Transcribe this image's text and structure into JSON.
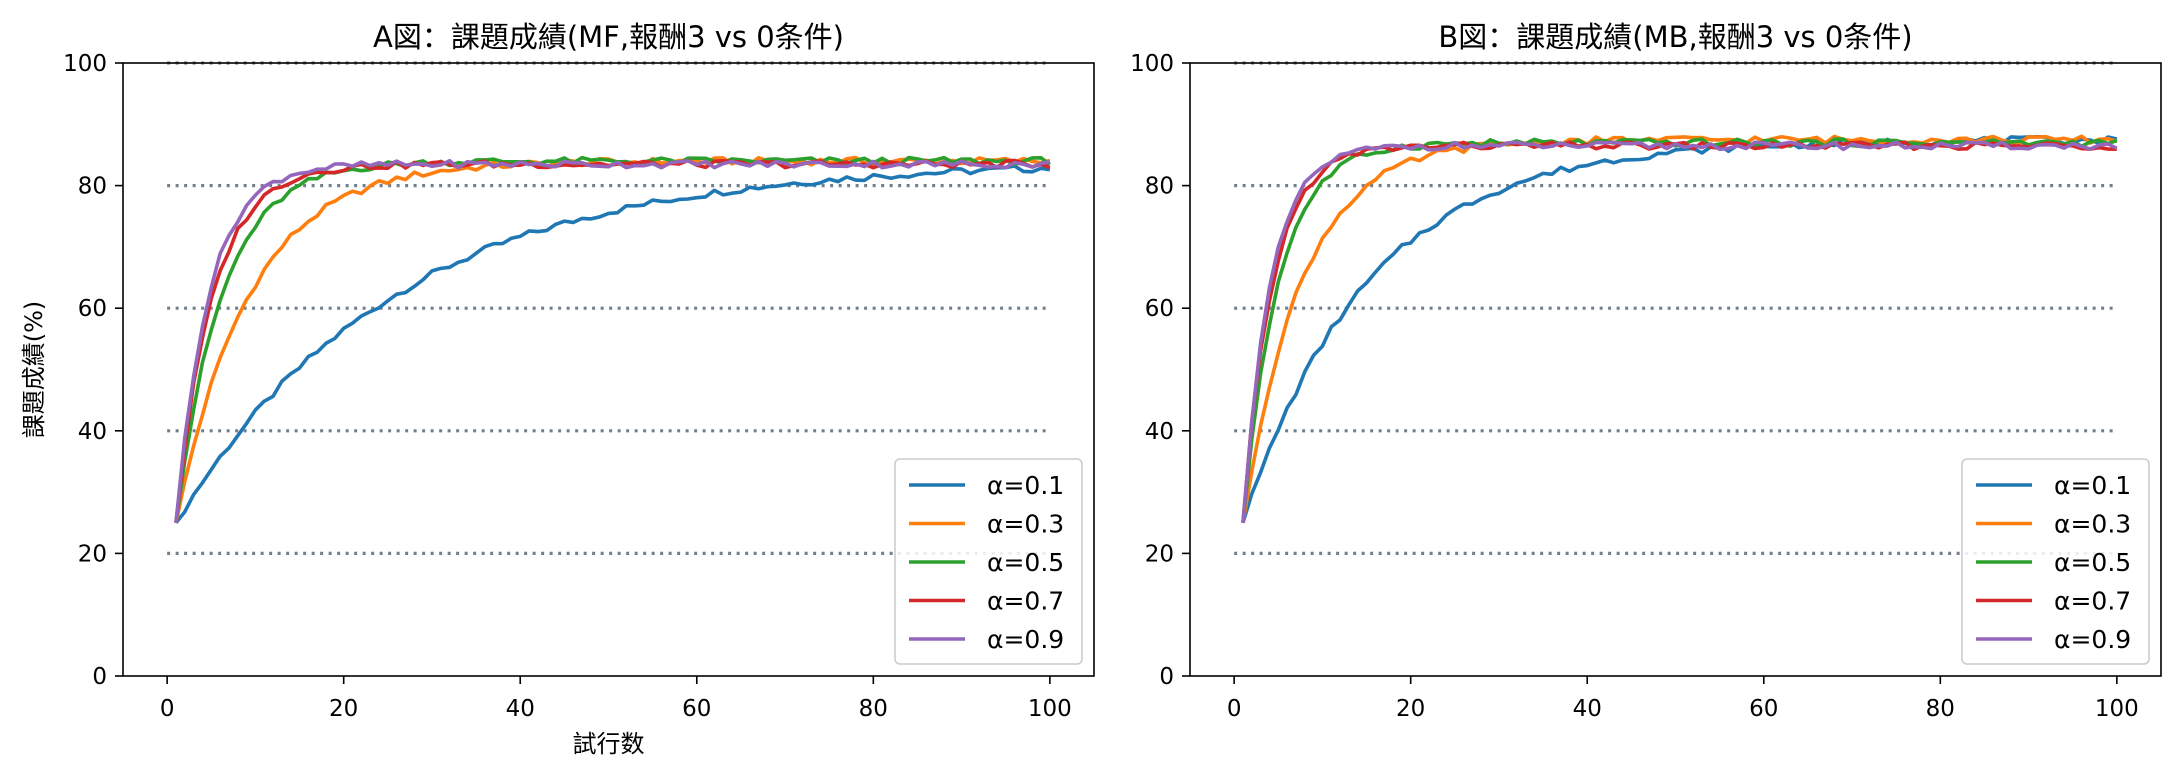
{
  "chart_data": [
    {
      "type": "line",
      "title": "A図：課題成績(MF,報酬3 vs 0条件)",
      "xlabel": "試行数",
      "ylabel": "課題成績(%)",
      "xlim": [
        -5,
        105
      ],
      "ylim": [
        0,
        100
      ],
      "xticks": [
        "0",
        "20",
        "40",
        "60",
        "80",
        "100"
      ],
      "yticks": [
        "0",
        "20",
        "40",
        "60",
        "80",
        "100"
      ],
      "reference_lines": [
        20,
        40,
        60,
        80,
        100
      ],
      "grid": false,
      "legend_position": "lower-right",
      "series": [
        {
          "name": "α=0.1",
          "color": "#1f77b4",
          "a": 25,
          "b": 84,
          "k": 0.04
        },
        {
          "name": "α=0.3",
          "color": "#ff7f0e",
          "a": 25,
          "b": 84,
          "k": 0.12
        },
        {
          "name": "α=0.5",
          "color": "#2ca02c",
          "a": 25,
          "b": 84,
          "k": 0.19
        },
        {
          "name": "α=0.7",
          "color": "#d62728",
          "a": 25,
          "b": 83.5,
          "k": 0.24
        },
        {
          "name": "α=0.9",
          "color": "#9467bd",
          "a": 25,
          "b": 83.5,
          "k": 0.27
        }
      ],
      "x_range": [
        1,
        100
      ]
    },
    {
      "type": "line",
      "title": "B図：課題成績(MB,報酬3 vs 0条件)",
      "xlabel": "",
      "ylabel": "",
      "xlim": [
        -5,
        105
      ],
      "ylim": [
        0,
        100
      ],
      "xticks": [
        "0",
        "20",
        "40",
        "60",
        "80",
        "100"
      ],
      "yticks": [
        "0",
        "20",
        "40",
        "60",
        "80",
        "100"
      ],
      "reference_lines": [
        20,
        40,
        60,
        80,
        100
      ],
      "grid": false,
      "legend_position": "lower-right",
      "series": [
        {
          "name": "α=0.1",
          "color": "#1f77b4",
          "a": 25,
          "b": 87.5,
          "k": 0.07
        },
        {
          "name": "α=0.3",
          "color": "#ff7f0e",
          "a": 25,
          "b": 87.5,
          "k": 0.15
        },
        {
          "name": "α=0.5",
          "color": "#2ca02c",
          "a": 25,
          "b": 87,
          "k": 0.25
        },
        {
          "name": "α=0.7",
          "color": "#d62728",
          "a": 25,
          "b": 86.5,
          "k": 0.3
        },
        {
          "name": "α=0.9",
          "color": "#9467bd",
          "a": 25,
          "b": 86.5,
          "k": 0.32
        }
      ],
      "x_range": [
        1,
        100
      ]
    }
  ]
}
